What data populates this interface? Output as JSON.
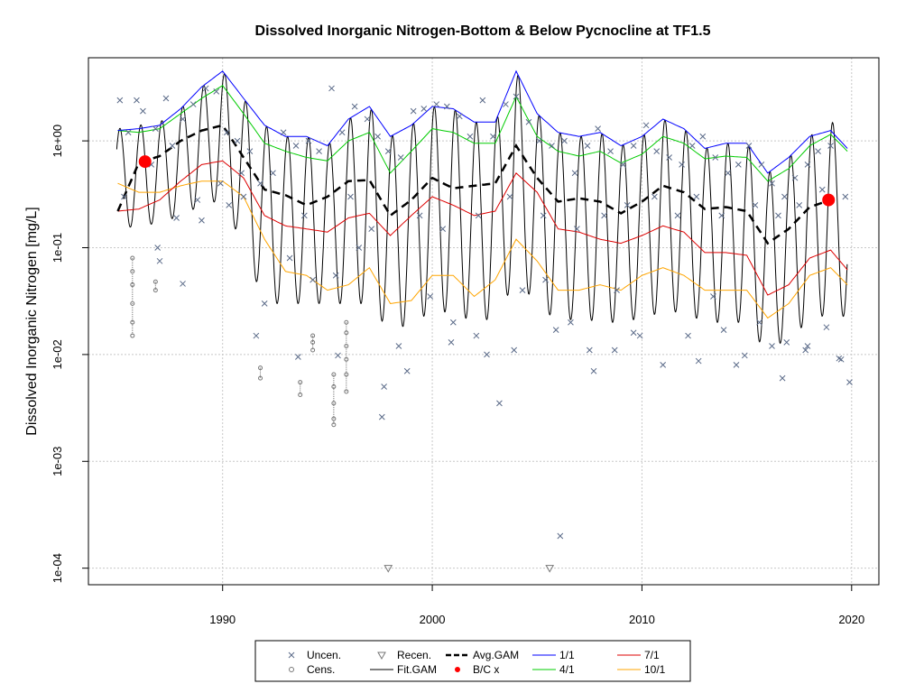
{
  "chart_data": {
    "type": "line",
    "title": "Dissolved Inorganic Nitrogen-Bottom & Below Pycnocline at TF1.5",
    "xlabel": "",
    "ylabel": "Dissolved Inorganic Nitrogen [mg/L]",
    "y_scale": "log",
    "ylim": [
      7e-05,
      6
    ],
    "xlim": [
      1983.6,
      2021.3
    ],
    "x_ticks": [
      1990,
      2000,
      2010,
      2020
    ],
    "x_tick_labels": [
      "1990",
      "2000",
      "2010",
      "2020"
    ],
    "y_ticks": [
      0.0001,
      0.001,
      0.01,
      0.1,
      1
    ],
    "y_tick_labels": [
      "1e-04",
      "1e-03",
      "1e-02",
      "1e-01",
      "1e+00"
    ],
    "grid": true,
    "legend_position": "bottom",
    "legend": [
      {
        "label": "Uncen.",
        "symbol": "x",
        "color": "#5a6a88"
      },
      {
        "label": "Cens.",
        "symbol": "o",
        "color": "#777777"
      },
      {
        "label": "Recen.",
        "symbol": "triangle-down",
        "color": "#777777"
      },
      {
        "label": "Fit.GAM",
        "symbol": "line",
        "color": "#000000"
      },
      {
        "label": "Avg.GAM",
        "symbol": "dashed",
        "color": "#000000"
      },
      {
        "label": "B/C x",
        "symbol": "dot",
        "color": "#ff0000"
      },
      {
        "label": "1/1",
        "symbol": "line",
        "color": "#0000ff"
      },
      {
        "label": "4/1",
        "symbol": "line",
        "color": "#00cc00"
      },
      {
        "label": "7/1",
        "symbol": "line",
        "color": "#dd0000"
      },
      {
        "label": "10/1",
        "symbol": "line",
        "color": "#ffa500"
      }
    ],
    "series": [
      {
        "name": "Avg.GAM",
        "color": "#000000",
        "x": [
          1985.0,
          1986.0,
          1987.0,
          1988.0,
          1989.0,
          1990.0,
          1991.0,
          1992.0,
          1993.0,
          1994.0,
          1995.0,
          1996.0,
          1997.0,
          1998.0,
          1999.0,
          2000.0,
          2001.0,
          2002.0,
          2003.0,
          2004.0,
          2005.0,
          2006.0,
          2007.0,
          2008.0,
          2009.0,
          2010.0,
          2011.0,
          2012.0,
          2013.0,
          2014.0,
          2015.0,
          2016.0,
          2017.0,
          2018.0,
          2019.0
        ],
        "y": [
          0.22,
          0.62,
          0.72,
          1.0,
          1.25,
          1.4,
          0.7,
          0.35,
          0.31,
          0.25,
          0.3,
          0.42,
          0.43,
          0.2,
          0.28,
          0.45,
          0.36,
          0.38,
          0.4,
          0.9,
          0.45,
          0.27,
          0.29,
          0.27,
          0.21,
          0.27,
          0.38,
          0.33,
          0.23,
          0.24,
          0.22,
          0.11,
          0.15,
          0.24,
          0.28
        ]
      },
      {
        "name": "1/1",
        "color": "#0000ff",
        "x": [
          1985.0,
          1986.0,
          1987.0,
          1988.0,
          1989.0,
          1990.0,
          1991.0,
          1992.0,
          1993.0,
          1994.0,
          1995.0,
          1996.0,
          1997.0,
          1998.0,
          1999.0,
          2000.0,
          2001.0,
          2002.0,
          2003.0,
          2004.0,
          2005.0,
          2006.0,
          2007.0,
          2008.0,
          2009.0,
          2010.0,
          2011.0,
          2012.0,
          2013.0,
          2014.0,
          2015.0,
          2016.0,
          2017.0,
          2018.0,
          2019.0,
          2019.8
        ],
        "y": [
          1.25,
          1.3,
          1.4,
          2.0,
          3.2,
          4.5,
          2.5,
          1.4,
          1.1,
          1.1,
          0.9,
          1.6,
          2.1,
          1.1,
          1.4,
          2.1,
          2.0,
          1.5,
          1.5,
          4.5,
          1.8,
          1.2,
          1.1,
          1.2,
          0.9,
          1.1,
          1.6,
          1.3,
          0.85,
          0.95,
          0.95,
          0.5,
          0.7,
          1.1,
          1.25,
          0.85
        ]
      },
      {
        "name": "4/1",
        "color": "#00cc00",
        "x": [
          1985.0,
          1986.0,
          1987.0,
          1988.0,
          1989.0,
          1990.0,
          1991.0,
          1992.0,
          1993.0,
          1994.0,
          1995.0,
          1996.0,
          1997.0,
          1998.0,
          1999.0,
          2000.0,
          2001.0,
          2002.0,
          2003.0,
          2004.0,
          2005.0,
          2006.0,
          2007.0,
          2008.0,
          2009.0,
          2010.0,
          2011.0,
          2012.0,
          2013.0,
          2014.0,
          2015.0,
          2016.0,
          2017.0,
          2018.0,
          2019.0,
          2019.8
        ],
        "y": [
          1.25,
          1.2,
          1.3,
          1.8,
          2.5,
          3.3,
          1.8,
          0.95,
          0.8,
          0.7,
          0.65,
          1.0,
          1.2,
          0.5,
          0.8,
          1.3,
          1.2,
          0.95,
          0.95,
          2.6,
          1.1,
          0.8,
          0.72,
          0.8,
          0.62,
          0.75,
          1.1,
          0.95,
          0.68,
          0.72,
          0.7,
          0.42,
          0.55,
          0.9,
          1.15,
          0.8
        ]
      },
      {
        "name": "7/1",
        "color": "#dd0000",
        "x": [
          1985.0,
          1986.0,
          1987.0,
          1988.0,
          1989.0,
          1990.0,
          1991.0,
          1992.0,
          1993.0,
          1994.0,
          1995.0,
          1996.0,
          1997.0,
          1998.0,
          1999.0,
          2000.0,
          2001.0,
          2002.0,
          2003.0,
          2004.0,
          2005.0,
          2006.0,
          2007.0,
          2008.0,
          2009.0,
          2010.0,
          2011.0,
          2012.0,
          2013.0,
          2014.0,
          2015.0,
          2016.0,
          2017.0,
          2018.0,
          2019.0,
          2019.8
        ],
        "y": [
          0.22,
          0.23,
          0.28,
          0.42,
          0.6,
          0.65,
          0.45,
          0.2,
          0.16,
          0.15,
          0.14,
          0.19,
          0.21,
          0.13,
          0.2,
          0.3,
          0.25,
          0.2,
          0.22,
          0.5,
          0.33,
          0.15,
          0.14,
          0.12,
          0.11,
          0.13,
          0.16,
          0.14,
          0.09,
          0.09,
          0.085,
          0.036,
          0.045,
          0.08,
          0.095,
          0.062
        ]
      },
      {
        "name": "10/1",
        "color": "#ffa500",
        "x": [
          1985.0,
          1986.0,
          1987.0,
          1988.0,
          1989.0,
          1990.0,
          1991.0,
          1992.0,
          1993.0,
          1994.0,
          1995.0,
          1996.0,
          1997.0,
          1998.0,
          1999.0,
          2000.0,
          2001.0,
          2002.0,
          2003.0,
          2004.0,
          2005.0,
          2006.0,
          2007.0,
          2008.0,
          2009.0,
          2010.0,
          2011.0,
          2012.0,
          2013.0,
          2014.0,
          2015.0,
          2016.0,
          2017.0,
          2018.0,
          2019.0,
          2019.8
        ],
        "y": [
          0.4,
          0.33,
          0.33,
          0.38,
          0.42,
          0.42,
          0.3,
          0.12,
          0.06,
          0.055,
          0.04,
          0.045,
          0.065,
          0.03,
          0.032,
          0.055,
          0.055,
          0.035,
          0.05,
          0.12,
          0.075,
          0.04,
          0.04,
          0.045,
          0.04,
          0.055,
          0.065,
          0.055,
          0.04,
          0.04,
          0.04,
          0.022,
          0.03,
          0.055,
          0.065,
          0.045
        ]
      },
      {
        "name": "Fit.GAM",
        "color": "#000000",
        "x": [
          1985.0,
          1986.0,
          1987.0,
          1988.0,
          1989.0,
          1990.0,
          1991.0,
          1992.0,
          1993.0,
          1994.0,
          1995.0,
          1996.0,
          1997.0,
          1998.0,
          1999.0,
          2000.0,
          2001.0,
          2002.0,
          2003.0,
          2004.0,
          2005.0,
          2006.0,
          2007.0,
          2008.0,
          2009.0,
          2010.0,
          2011.0,
          2012.0,
          2013.0,
          2014.0,
          2015.0,
          2016.0,
          2017.0,
          2018.0,
          2019.0,
          2019.8
        ],
        "peak_y": [
          1.3,
          1.4,
          1.5,
          2.0,
          3.2,
          4.5,
          2.5,
          1.4,
          1.1,
          1.1,
          0.9,
          1.6,
          2.1,
          1.1,
          1.4,
          2.1,
          2.0,
          1.5,
          1.5,
          4.5,
          1.8,
          1.2,
          1.1,
          1.2,
          0.9,
          1.1,
          1.6,
          1.3,
          0.85,
          0.95,
          0.95,
          0.5,
          0.7,
          1.1,
          1.6,
          0.85
        ],
        "trough_y": [
          0.15,
          0.16,
          0.17,
          0.2,
          0.25,
          0.28,
          0.1,
          0.03,
          0.03,
          0.03,
          0.03,
          0.03,
          0.03,
          0.016,
          0.02,
          0.025,
          0.025,
          0.02,
          0.022,
          0.05,
          0.03,
          0.02,
          0.022,
          0.02,
          0.02,
          0.022,
          0.025,
          0.025,
          0.02,
          0.02,
          0.02,
          0.01,
          0.015,
          0.02,
          0.025,
          0.022
        ]
      },
      {
        "name": "B/C x",
        "color": "#ff0000",
        "x": [
          1986.3,
          2018.9
        ],
        "y": [
          0.64,
          0.28
        ]
      }
    ],
    "points_uncensored": [
      [
        1985.1,
        2.4
      ],
      [
        1985.5,
        1.2
      ],
      [
        1985.9,
        2.4
      ],
      [
        1986.2,
        1.9
      ],
      [
        1986.8,
        1.3
      ],
      [
        1987.3,
        2.5
      ],
      [
        1987.6,
        0.9
      ],
      [
        1988.1,
        1.6
      ],
      [
        1988.6,
        2.2
      ],
      [
        1989.2,
        3.1
      ],
      [
        1989.7,
        2.9
      ],
      [
        1990.2,
        1.2
      ],
      [
        1990.7,
        1.0
      ],
      [
        1991.3,
        0.8
      ],
      [
        1991.8,
        0.4
      ],
      [
        1992.4,
        0.5
      ],
      [
        1992.9,
        1.2
      ],
      [
        1993.5,
        0.9
      ],
      [
        1994.1,
        1.0
      ],
      [
        1994.6,
        0.8
      ],
      [
        1995.2,
        3.1
      ],
      [
        1995.7,
        1.2
      ],
      [
        1996.3,
        2.1
      ],
      [
        1996.9,
        1.6
      ],
      [
        1997.4,
        1.1
      ],
      [
        1997.9,
        0.8
      ],
      [
        1998.5,
        0.7
      ],
      [
        1999.1,
        1.9
      ],
      [
        1999.6,
        2.0
      ],
      [
        2000.2,
        2.2
      ],
      [
        2000.7,
        2.1
      ],
      [
        2001.3,
        1.7
      ],
      [
        2001.8,
        1.1
      ],
      [
        2002.4,
        2.4
      ],
      [
        2002.9,
        1.1
      ],
      [
        2003.5,
        2.2
      ],
      [
        2004.0,
        2.6
      ],
      [
        2004.6,
        1.5
      ],
      [
        2005.1,
        1.0
      ],
      [
        2005.7,
        0.9
      ],
      [
        2006.3,
        1.0
      ],
      [
        2006.8,
        0.5
      ],
      [
        2007.4,
        0.9
      ],
      [
        2007.9,
        1.3
      ],
      [
        2008.5,
        0.8
      ],
      [
        2009.1,
        0.6
      ],
      [
        2009.6,
        0.9
      ],
      [
        2010.2,
        1.4
      ],
      [
        2010.7,
        0.8
      ],
      [
        2011.3,
        0.7
      ],
      [
        2011.9,
        0.6
      ],
      [
        2012.4,
        0.9
      ],
      [
        2012.9,
        1.1
      ],
      [
        2013.5,
        0.7
      ],
      [
        2014.1,
        0.5
      ],
      [
        2014.6,
        0.6
      ],
      [
        2015.1,
        0.9
      ],
      [
        2015.7,
        0.6
      ],
      [
        2016.2,
        0.4
      ],
      [
        2016.8,
        0.3
      ],
      [
        2017.3,
        0.45
      ],
      [
        2017.9,
        0.6
      ],
      [
        2018.4,
        0.8
      ],
      [
        2019.0,
        0.9
      ],
      [
        2019.7,
        0.3
      ],
      [
        1985.3,
        0.3
      ],
      [
        1986.6,
        0.6
      ],
      [
        1987.8,
        0.19
      ],
      [
        1988.8,
        0.28
      ],
      [
        1989.9,
        0.4
      ],
      [
        1990.9,
        0.5
      ],
      [
        1992.0,
        0.03
      ],
      [
        1993.2,
        0.08
      ],
      [
        1994.3,
        0.05
      ],
      [
        1995.4,
        0.055
      ],
      [
        1996.5,
        0.1
      ],
      [
        1997.7,
        0.005
      ],
      [
        1998.8,
        0.007
      ],
      [
        1999.9,
        0.035
      ],
      [
        2001.0,
        0.02
      ],
      [
        2002.1,
        0.015
      ],
      [
        2003.2,
        0.0035
      ],
      [
        2004.3,
        0.04
      ],
      [
        2005.4,
        0.05
      ],
      [
        2006.6,
        0.02
      ],
      [
        2007.7,
        0.007
      ],
      [
        2008.8,
        0.04
      ],
      [
        2009.9,
        0.015
      ],
      [
        2011.0,
        0.008
      ],
      [
        2012.2,
        0.015
      ],
      [
        2013.4,
        0.035
      ],
      [
        2014.5,
        0.008
      ],
      [
        2015.6,
        0.02
      ],
      [
        2016.7,
        0.006
      ],
      [
        2017.8,
        0.011
      ],
      [
        2019.5,
        0.009
      ],
      [
        2019.9,
        0.0055
      ],
      [
        2006.1,
        0.0002
      ],
      [
        1997.6,
        0.0026
      ],
      [
        1987.0,
        0.075
      ],
      [
        1988.1,
        0.046
      ],
      [
        1989.0,
        0.18
      ],
      [
        1991.6,
        0.015
      ],
      [
        1993.6,
        0.0095
      ],
      [
        1995.5,
        0.0098
      ],
      [
        1998.4,
        0.012
      ],
      [
        2000.9,
        0.013
      ],
      [
        2002.6,
        0.01
      ],
      [
        2003.9,
        0.011
      ],
      [
        2005.9,
        0.017
      ],
      [
        2007.5,
        0.011
      ],
      [
        2008.7,
        0.011
      ],
      [
        2009.6,
        0.016
      ],
      [
        2012.7,
        0.0087
      ],
      [
        2013.9,
        0.017
      ],
      [
        2014.9,
        0.0098
      ],
      [
        2016.2,
        0.012
      ],
      [
        2016.9,
        0.013
      ],
      [
        2017.9,
        0.012
      ],
      [
        2018.8,
        0.018
      ],
      [
        2019.4,
        0.0092
      ],
      [
        1986.9,
        0.1
      ],
      [
        1990.3,
        0.25
      ],
      [
        1991.0,
        0.3
      ],
      [
        1993.9,
        0.2
      ],
      [
        1996.1,
        0.3
      ],
      [
        1997.1,
        0.15
      ],
      [
        1999.4,
        0.2
      ],
      [
        2000.5,
        0.15
      ],
      [
        2002.2,
        0.2
      ],
      [
        2003.7,
        0.3
      ],
      [
        2005.3,
        0.2
      ],
      [
        2006.9,
        0.15
      ],
      [
        2008.2,
        0.2
      ],
      [
        2009.3,
        0.25
      ],
      [
        2010.6,
        0.3
      ],
      [
        2011.7,
        0.2
      ],
      [
        2012.6,
        0.3
      ],
      [
        2013.8,
        0.2
      ],
      [
        2015.4,
        0.25
      ],
      [
        2016.5,
        0.2
      ],
      [
        2017.5,
        0.25
      ],
      [
        2018.6,
        0.35
      ]
    ],
    "points_censored": [
      {
        "x": 1985.7,
        "values": [
          0.08,
          0.06,
          0.045,
          0.03,
          0.02,
          0.015
        ]
      },
      {
        "x": 1986.8,
        "values": [
          0.048,
          0.04
        ]
      },
      {
        "x": 1991.8,
        "values": [
          0.0075,
          0.006
        ]
      },
      {
        "x": 1993.7,
        "values": [
          0.0055,
          0.0042
        ]
      },
      {
        "x": 1994.3,
        "values": [
          0.015,
          0.013,
          0.011
        ]
      },
      {
        "x": 1995.3,
        "values": [
          0.0065,
          0.005,
          0.0035,
          0.0025,
          0.0022
        ]
      },
      {
        "x": 1995.9,
        "values": [
          0.02,
          0.016,
          0.012,
          0.009,
          0.0065,
          0.0045
        ]
      }
    ],
    "points_recensored": [
      [
        1997.9,
        0.0001
      ],
      [
        2005.6,
        0.0001
      ]
    ]
  }
}
